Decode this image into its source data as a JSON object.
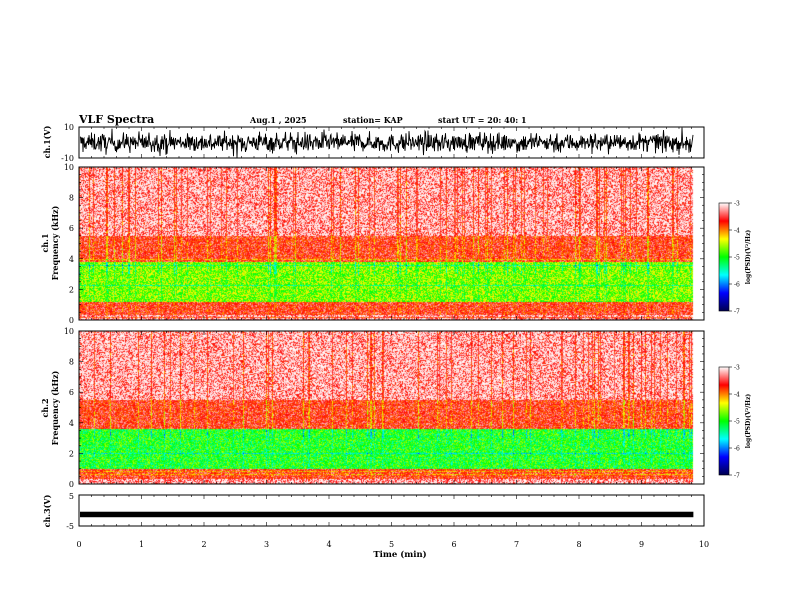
{
  "header": {
    "title": "VLF Spectra",
    "date": "Aug.1 , 2025",
    "station": "station= KAP",
    "start": "start UT = 20: 40: 1"
  },
  "chart_data": [
    {
      "type": "line",
      "name": "waveform-ch1",
      "ylabel": "ch.1(V)",
      "ylim": [
        -10,
        10
      ],
      "ytick_labels": [
        "10",
        "-10"
      ],
      "xlim": [
        0,
        10
      ],
      "data_end_min": 9.83
    },
    {
      "type": "heatmap",
      "name": "spectrogram-ch1",
      "ylabel_line1": "ch.1",
      "ylabel_line2": "Frequency (kHz)",
      "ylim": [
        0,
        10
      ],
      "ytick_labels": [
        "0",
        "2",
        "4",
        "6",
        "8",
        "10"
      ],
      "xlim": [
        0,
        10
      ],
      "bands": [
        {
          "range_khz": [
            0.3,
            1.2
          ],
          "level": -3.6
        },
        {
          "range_khz": [
            1.2,
            3.8
          ],
          "level": -4.7
        },
        {
          "range_khz": [
            3.8,
            5.5
          ],
          "level": -3.6
        },
        {
          "range_khz": [
            5.5,
            10
          ],
          "level": -3.1
        }
      ]
    },
    {
      "type": "heatmap",
      "name": "spectrogram-ch2",
      "ylabel_line1": "ch.2",
      "ylabel_line2": "Frequency (kHz)",
      "ylim": [
        0,
        10
      ],
      "ytick_labels": [
        "0",
        "2",
        "4",
        "6",
        "8",
        "10"
      ],
      "xlim": [
        0,
        10
      ],
      "bands": [
        {
          "range_khz": [
            0.3,
            1.0
          ],
          "level": -3.6
        },
        {
          "range_khz": [
            1.0,
            3.6
          ],
          "level": -5.0
        },
        {
          "range_khz": [
            3.6,
            5.5
          ],
          "level": -3.6
        },
        {
          "range_khz": [
            5.5,
            10
          ],
          "level": -3.1
        }
      ]
    },
    {
      "type": "line",
      "name": "waveform-ch3",
      "ylabel": "ch.3(V)",
      "ylim": [
        -5,
        5
      ],
      "ytick_labels": [
        "5",
        "-5"
      ],
      "xlim": [
        0,
        10
      ],
      "data_end_min": 9.83,
      "xlabel": "Time (min)",
      "xtick_labels": [
        "0",
        "1",
        "2",
        "3",
        "4",
        "5",
        "6",
        "7",
        "8",
        "9",
        "10"
      ]
    }
  ],
  "colorbar": {
    "label": "log(PSD)(V²/Hz)",
    "range": [
      -7,
      -3
    ],
    "tick_labels": [
      "-3",
      "-4",
      "-5",
      "-6",
      "-7"
    ],
    "colors": [
      "#ffffff",
      "#ff0000",
      "#ffff00",
      "#00ff00",
      "#00ffff",
      "#0000ff",
      "#000050"
    ]
  }
}
